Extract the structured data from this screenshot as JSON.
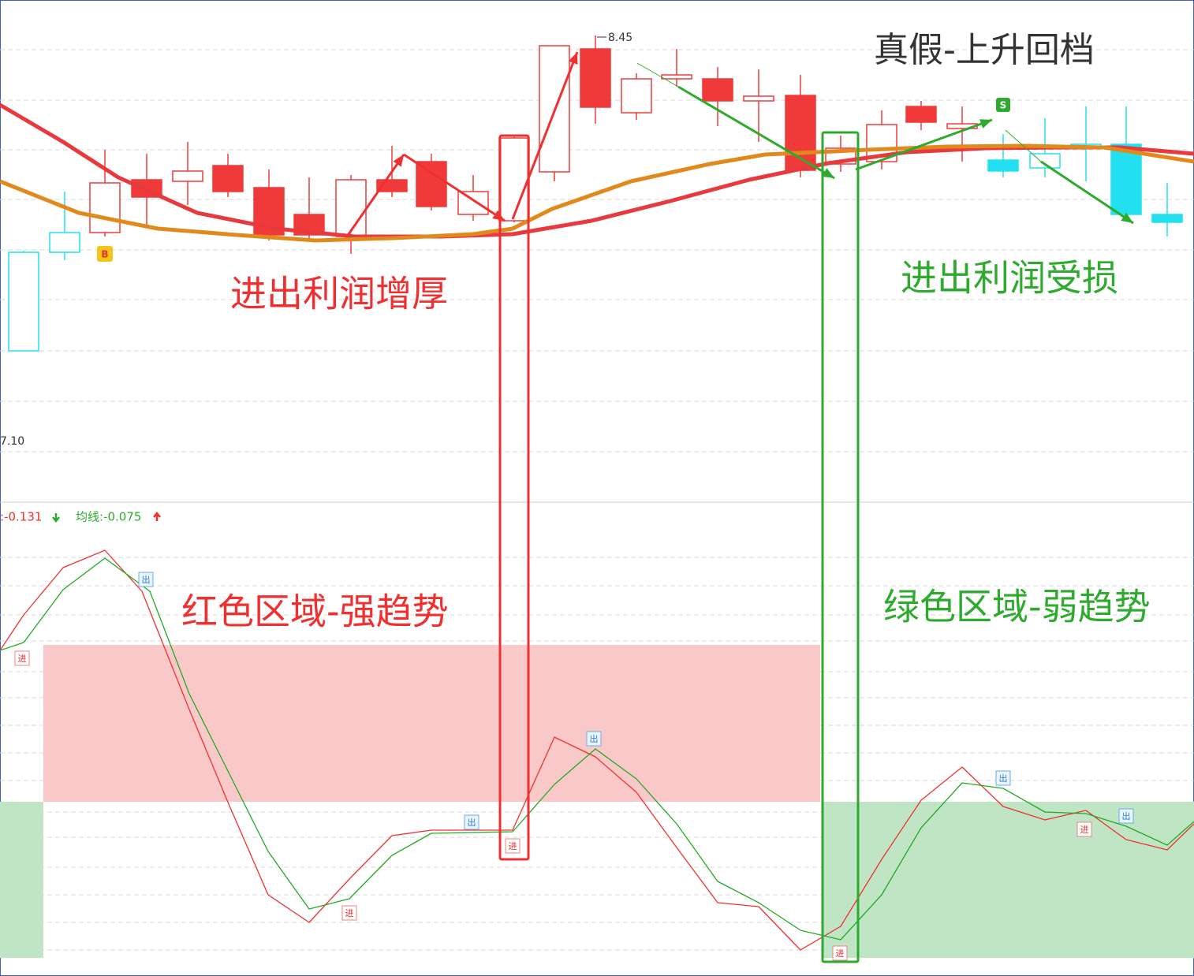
{
  "title": "真假-上升回档",
  "annotations": {
    "profit_up": "进出利润增厚",
    "profit_down": "进出利润受损",
    "red_zone": "红色区域-强趋势",
    "green_zone": "绿色区域-弱趋势"
  },
  "price_labels": {
    "high": "8.45",
    "low": "7.10"
  },
  "indicator": {
    "line": ":-0.131",
    "average": "均线:-0.075"
  },
  "signals": {
    "buy": "B",
    "sell": "S",
    "entries": [
      "进",
      "进",
      "进",
      "进",
      "进"
    ],
    "exits": [
      "出",
      "出",
      "出",
      "出",
      "出"
    ]
  }
}
